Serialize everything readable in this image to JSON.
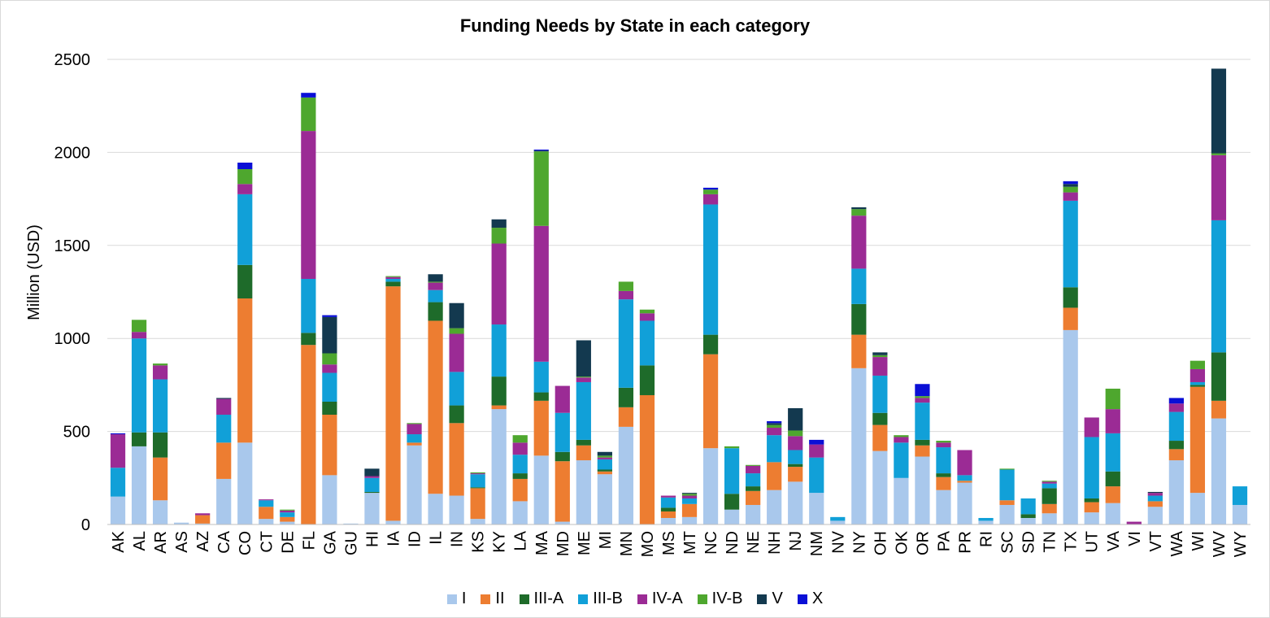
{
  "chart_data": {
    "type": "bar",
    "stacked": true,
    "title": "Funding Needs by State in each category",
    "xlabel": "",
    "ylabel": "Million (USD)",
    "ylim": [
      0,
      2500
    ],
    "yticks": [
      0,
      500,
      1000,
      1500,
      2000,
      2500
    ],
    "grid": true,
    "legend_position": "bottom",
    "categories": [
      "AK",
      "AL",
      "AR",
      "AS",
      "AZ",
      "CA",
      "CO",
      "CT",
      "DE",
      "FL",
      "GA",
      "GU",
      "HI",
      "IA",
      "ID",
      "IL",
      "IN",
      "KS",
      "KY",
      "LA",
      "MA",
      "MD",
      "ME",
      "MI",
      "MN",
      "MO",
      "MS",
      "MT",
      "NC",
      "ND",
      "NE",
      "NH",
      "NJ",
      "NM",
      "NV",
      "NY",
      "OH",
      "OK",
      "OR",
      "PA",
      "PR",
      "RI",
      "SC",
      "SD",
      "TN",
      "TX",
      "UT",
      "VA",
      "VI",
      "VT",
      "WA",
      "WI",
      "WV",
      "WY"
    ],
    "series": [
      {
        "name": "I",
        "color": "#a9c8ec",
        "values": [
          150,
          420,
          130,
          10,
          5,
          245,
          440,
          30,
          15,
          0,
          265,
          5,
          170,
          20,
          425,
          165,
          155,
          30,
          620,
          125,
          370,
          15,
          345,
          270,
          525,
          0,
          35,
          40,
          410,
          80,
          105,
          185,
          230,
          170,
          20,
          840,
          395,
          250,
          365,
          185,
          225,
          20,
          105,
          35,
          60,
          1045,
          65,
          115,
          0,
          95,
          345,
          170,
          570,
          105
        ]
      },
      {
        "name": "II",
        "color": "#ed7d31",
        "values": [
          0,
          0,
          230,
          0,
          45,
          195,
          775,
          65,
          25,
          965,
          325,
          0,
          0,
          1260,
          15,
          930,
          390,
          165,
          20,
          120,
          295,
          325,
          80,
          15,
          105,
          695,
          35,
          70,
          505,
          0,
          75,
          150,
          80,
          0,
          0,
          180,
          140,
          0,
          60,
          70,
          10,
          0,
          25,
          0,
          50,
          120,
          55,
          90,
          0,
          30,
          60,
          570,
          95,
          0
        ]
      },
      {
        "name": "III-A",
        "color": "#1e6b2a",
        "values": [
          0,
          75,
          135,
          0,
          0,
          0,
          180,
          0,
          0,
          65,
          70,
          0,
          5,
          25,
          0,
          100,
          95,
          5,
          155,
          30,
          45,
          50,
          30,
          10,
          105,
          160,
          20,
          0,
          105,
          85,
          25,
          0,
          15,
          0,
          0,
          165,
          65,
          0,
          30,
          20,
          0,
          0,
          0,
          20,
          85,
          110,
          20,
          80,
          0,
          0,
          45,
          10,
          260,
          0
        ]
      },
      {
        "name": "III-B",
        "color": "#11a0d8",
        "values": [
          155,
          505,
          285,
          0,
          0,
          150,
          380,
          35,
          25,
          290,
          155,
          0,
          75,
          15,
          45,
          65,
          180,
          70,
          280,
          100,
          165,
          210,
          310,
          55,
          475,
          240,
          55,
          30,
          700,
          245,
          70,
          145,
          75,
          190,
          20,
          190,
          200,
          190,
          200,
          140,
          30,
          15,
          165,
          85,
          25,
          465,
          330,
          205,
          0,
          30,
          155,
          15,
          710,
          100
        ]
      },
      {
        "name": "IV-A",
        "color": "#9b2b95",
        "values": [
          180,
          35,
          75,
          0,
          10,
          85,
          55,
          5,
          10,
          795,
          45,
          0,
          10,
          10,
          55,
          40,
          205,
          5,
          435,
          65,
          730,
          145,
          25,
          10,
          45,
          40,
          10,
          15,
          55,
          0,
          40,
          40,
          75,
          70,
          0,
          285,
          100,
          30,
          25,
          25,
          135,
          0,
          0,
          0,
          10,
          45,
          105,
          130,
          15,
          15,
          45,
          70,
          350,
          0
        ]
      },
      {
        "name": "IV-B",
        "color": "#4ea72e",
        "values": [
          0,
          65,
          10,
          0,
          0,
          0,
          80,
          0,
          5,
          180,
          60,
          0,
          0,
          5,
          5,
          5,
          30,
          5,
          85,
          40,
          400,
          0,
          5,
          10,
          50,
          20,
          0,
          10,
          25,
          10,
          5,
          15,
          30,
          0,
          0,
          35,
          10,
          10,
          10,
          10,
          0,
          0,
          5,
          0,
          5,
          30,
          0,
          110,
          0,
          0,
          0,
          45,
          10,
          0
        ]
      },
      {
        "name": "V",
        "color": "#13394f",
        "values": [
          0,
          0,
          0,
          0,
          0,
          5,
          0,
          0,
          0,
          0,
          195,
          0,
          40,
          0,
          0,
          40,
          135,
          0,
          45,
          0,
          5,
          0,
          195,
          20,
          0,
          0,
          0,
          5,
          0,
          0,
          0,
          10,
          120,
          0,
          0,
          10,
          15,
          0,
          0,
          0,
          0,
          0,
          0,
          0,
          0,
          15,
          0,
          0,
          0,
          5,
          0,
          0,
          455,
          0
        ]
      },
      {
        "name": "X",
        "color": "#0a0fd6",
        "values": [
          5,
          0,
          0,
          0,
          0,
          0,
          35,
          0,
          0,
          25,
          10,
          0,
          0,
          0,
          0,
          0,
          0,
          0,
          0,
          0,
          5,
          0,
          0,
          0,
          0,
          0,
          0,
          0,
          10,
          0,
          0,
          10,
          0,
          25,
          0,
          0,
          0,
          0,
          65,
          0,
          0,
          0,
          0,
          0,
          0,
          15,
          0,
          0,
          0,
          0,
          30,
          0,
          0,
          0
        ]
      }
    ]
  }
}
